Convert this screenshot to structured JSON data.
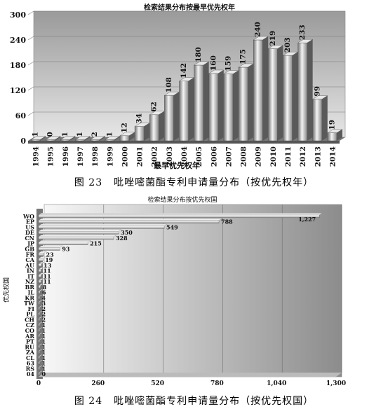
{
  "chart_data": [
    {
      "type": "bar",
      "title": "检索结果分布按最早优先权年",
      "xlabel": "最早优先权年",
      "ylabel": "",
      "categories": [
        "1994",
        "1995",
        "1996",
        "1997",
        "1998",
        "1999",
        "2000",
        "2001",
        "2002",
        "2003",
        "2004",
        "2005",
        "2006",
        "2007",
        "2008",
        "2009",
        "2010",
        "2011",
        "2012",
        "2013",
        "2014"
      ],
      "values": [
        1,
        0,
        1,
        1,
        2,
        1,
        12,
        34,
        62,
        108,
        142,
        180,
        160,
        159,
        175,
        240,
        219,
        203,
        233,
        99,
        19
      ],
      "yticks": [
        "0",
        "60",
        "120",
        "180",
        "240",
        "300"
      ],
      "ylim": [
        0,
        300
      ],
      "grid": true
    },
    {
      "type": "bar",
      "orientation": "horizontal",
      "title": "检索结果分布按优先权国",
      "xlabel": "",
      "ylabel": "优先权国",
      "categories": [
        "WO",
        "EP",
        "US",
        "DE",
        "CN",
        "JP",
        "GB",
        "FR",
        "CA",
        "AU",
        "IN",
        "IT",
        "NZ",
        "BR",
        "IL",
        "KR",
        "TW",
        "FI",
        "PL",
        "CH",
        "CZ",
        "CO",
        "AR",
        "PT",
        "RU",
        "ZA",
        "CL",
        "63",
        "RS",
        "04"
      ],
      "values": [
        1227,
        788,
        549,
        350,
        328,
        215,
        93,
        23,
        19,
        13,
        11,
        11,
        11,
        8,
        6,
        4,
        3,
        2,
        2,
        2,
        1,
        1,
        1,
        1,
        1,
        1,
        1,
        1,
        1,
        0
      ],
      "value_labels": [
        "1,227",
        "788",
        "549",
        "350",
        "328",
        "215",
        "93",
        "23",
        "19",
        "13",
        "11",
        "11",
        "11",
        "8",
        "6",
        "4",
        "3",
        "2",
        "2",
        "2",
        "1",
        "1",
        "1",
        "1",
        "1",
        "1",
        "1",
        "1",
        "1",
        "0"
      ],
      "xticks": [
        "0",
        "260",
        "520",
        "780",
        "1,040",
        "1,300"
      ],
      "xlim": [
        0,
        1300
      ],
      "grid": true
    }
  ],
  "captions": {
    "fig23_num": "图 23",
    "fig23_text": "吡唑嘧菌酯专利申请量分布（按优先权年）",
    "fig24_num": "图 24",
    "fig24_text": "吡唑嘧菌酯专利申请量分布（按优先权国）"
  }
}
